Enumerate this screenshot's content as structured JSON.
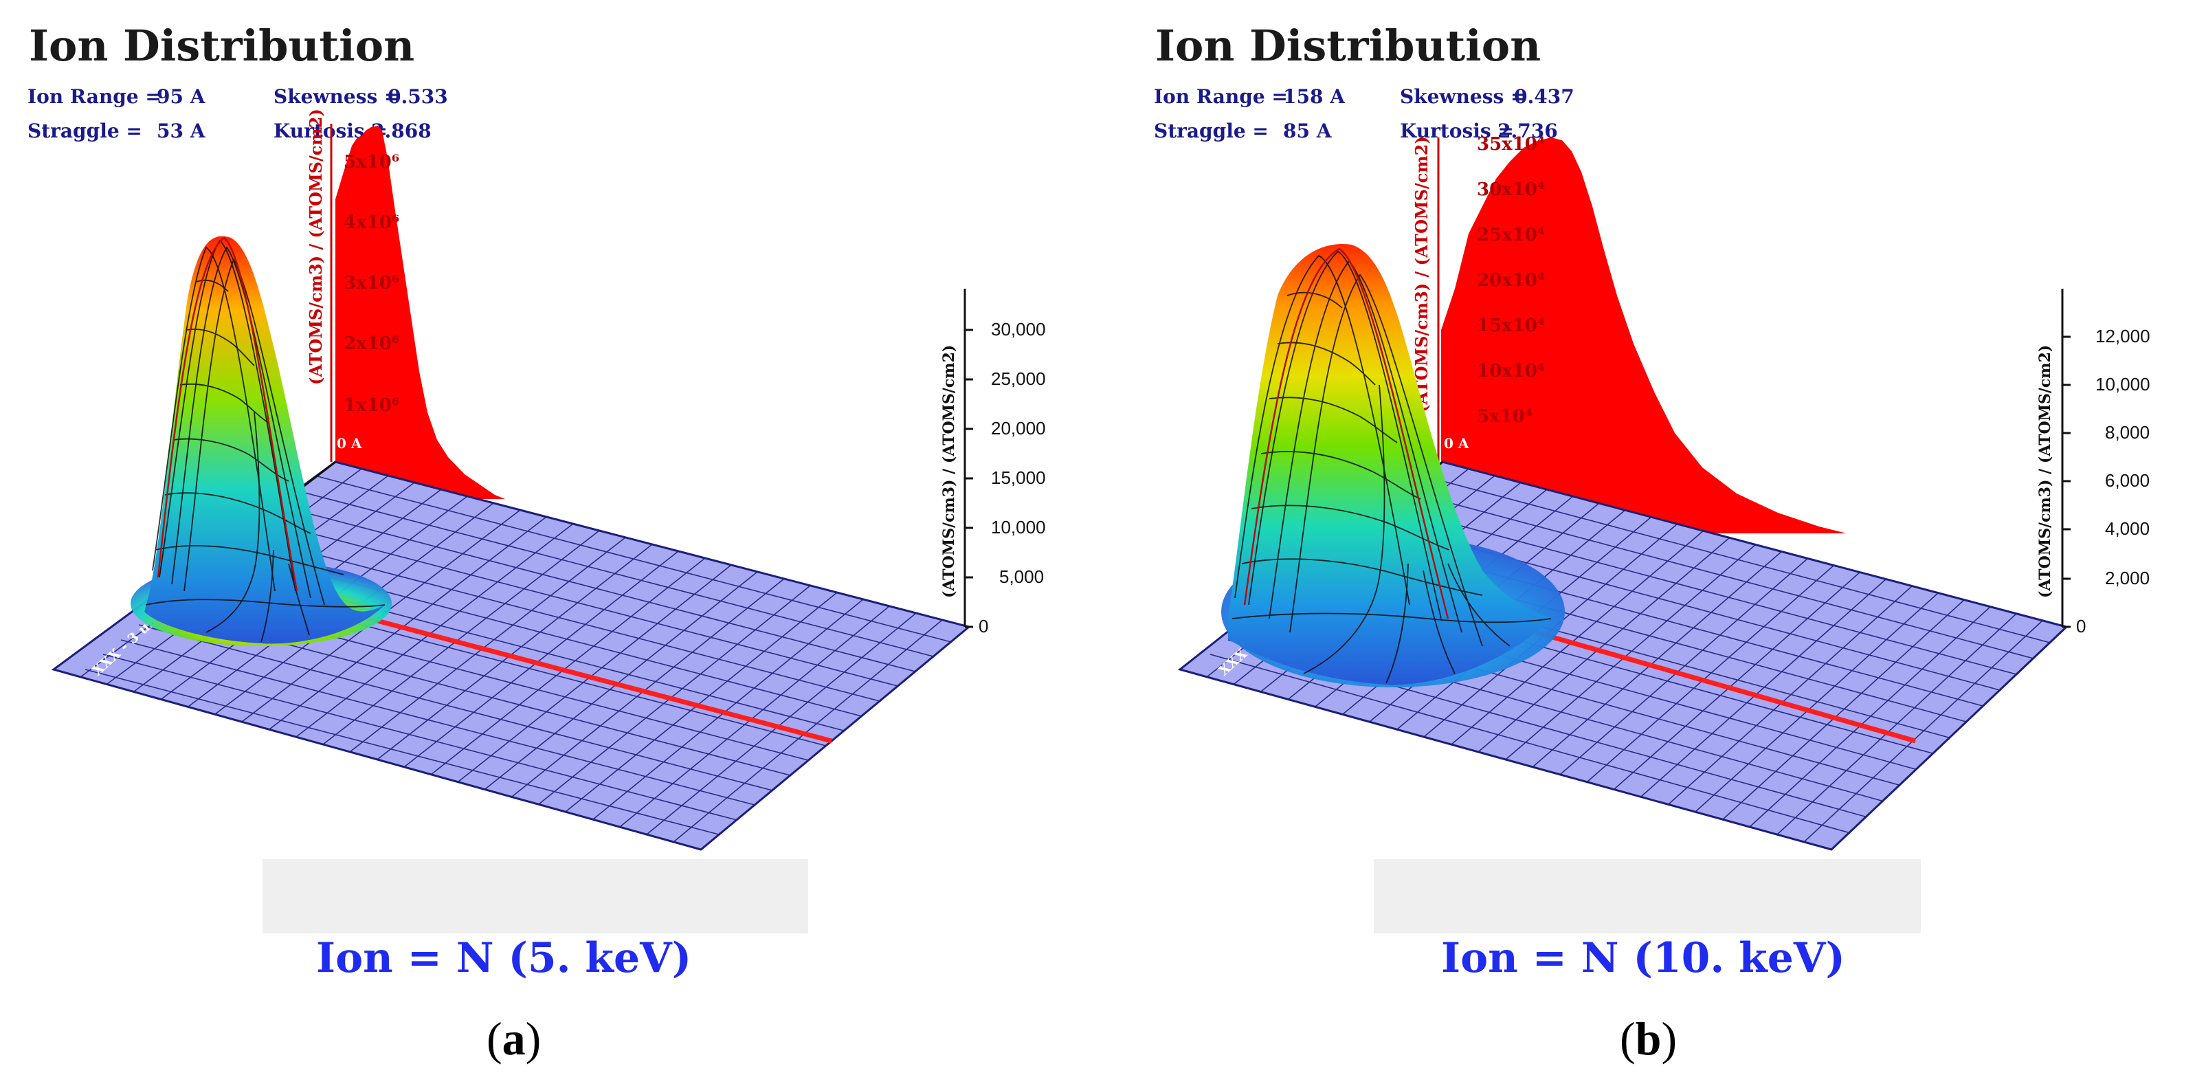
{
  "figure": {
    "panels": [
      {
        "id": "a",
        "title": "Ion Distribution",
        "stats": {
          "ion_range_label": "Ion Range =",
          "ion_range_value": "95 A",
          "skewness_label": "Skewness =",
          "skewness_value": "0.533",
          "straggle_label": "Straggle =",
          "straggle_value": "53 A",
          "kurtosis_label": "Kurtosis =",
          "kurtosis_value": "2.868"
        },
        "ion_label": "Ion =  N (5. keV)",
        "sublabel_open": "(",
        "sublabel_letter": "a",
        "sublabel_close": ")",
        "depth_label": "0 A",
        "depth_axis_label": "XXX - 3 um",
        "red_axis_label": "(ATOMS/cm3) / (ATOMS/cm2)",
        "red_ticks": [
          "1x10⁶",
          "2x10⁶",
          "3x10⁶",
          "4x10⁶",
          "5x10⁶"
        ],
        "right_axis_label": "(ATOMS/cm3) / (ATOMS/cm2)",
        "right_ticks": [
          "30,000",
          "25,000",
          "20,000",
          "15,000",
          "10,000",
          "5,000",
          "0"
        ]
      },
      {
        "id": "b",
        "title": "Ion Distribution",
        "stats": {
          "ion_range_label": "Ion Range =",
          "ion_range_value": "158 A",
          "skewness_label": "Skewness =",
          "skewness_value": "0.437",
          "straggle_label": "Straggle =",
          "straggle_value": "85 A",
          "kurtosis_label": "Kurtosis =",
          "kurtosis_value": "2.736"
        },
        "ion_label": "Ion =  N (10. keV)",
        "sublabel_open": "(",
        "sublabel_letter": "b",
        "sublabel_close": ")",
        "depth_label": "0 A",
        "depth_axis_label": "XXX - 3 um",
        "red_axis_label": "(ATOMS/cm3) / (ATOMS/cm2)",
        "red_ticks": [
          "5x10⁴",
          "10x10⁴",
          "15x10⁴",
          "20x10⁴",
          "25x10⁴",
          "30x10⁴",
          "35x10⁴"
        ],
        "right_axis_label": "(ATOMS/cm3) / (ATOMS/cm2)",
        "right_ticks": [
          "12,000",
          "10,000",
          "8,000",
          "6,000",
          "4,000",
          "2,000",
          "0"
        ]
      }
    ]
  },
  "chart_data": [
    {
      "type": "area",
      "title": "Ion Distribution",
      "ion": "N (5. keV)",
      "ion_range_A": 95,
      "straggle_A": 53,
      "skewness": 0.533,
      "kurtosis": 2.868,
      "ylabel": "(ATOMS/cm3) / (ATOMS/cm2)",
      "lateral_z_ticks": [
        0,
        5000,
        10000,
        15000,
        20000,
        25000,
        30000
      ],
      "depth_profile_peak": 5500000.0
    },
    {
      "type": "area",
      "title": "Ion Distribution",
      "ion": "N (10. keV)",
      "ion_range_A": 158,
      "straggle_A": 85,
      "skewness": 0.437,
      "kurtosis": 2.736,
      "ylabel": "(ATOMS/cm3) / (ATOMS/cm2)",
      "lateral_z_ticks": [
        0,
        2000,
        4000,
        6000,
        8000,
        10000,
        12000
      ],
      "depth_profile_peak": 350000.0
    }
  ],
  "colors": {
    "floor": "#a7a9f2",
    "grid": "#1b1f78",
    "profile": "#ff0000",
    "peak": "#ff2a00"
  }
}
